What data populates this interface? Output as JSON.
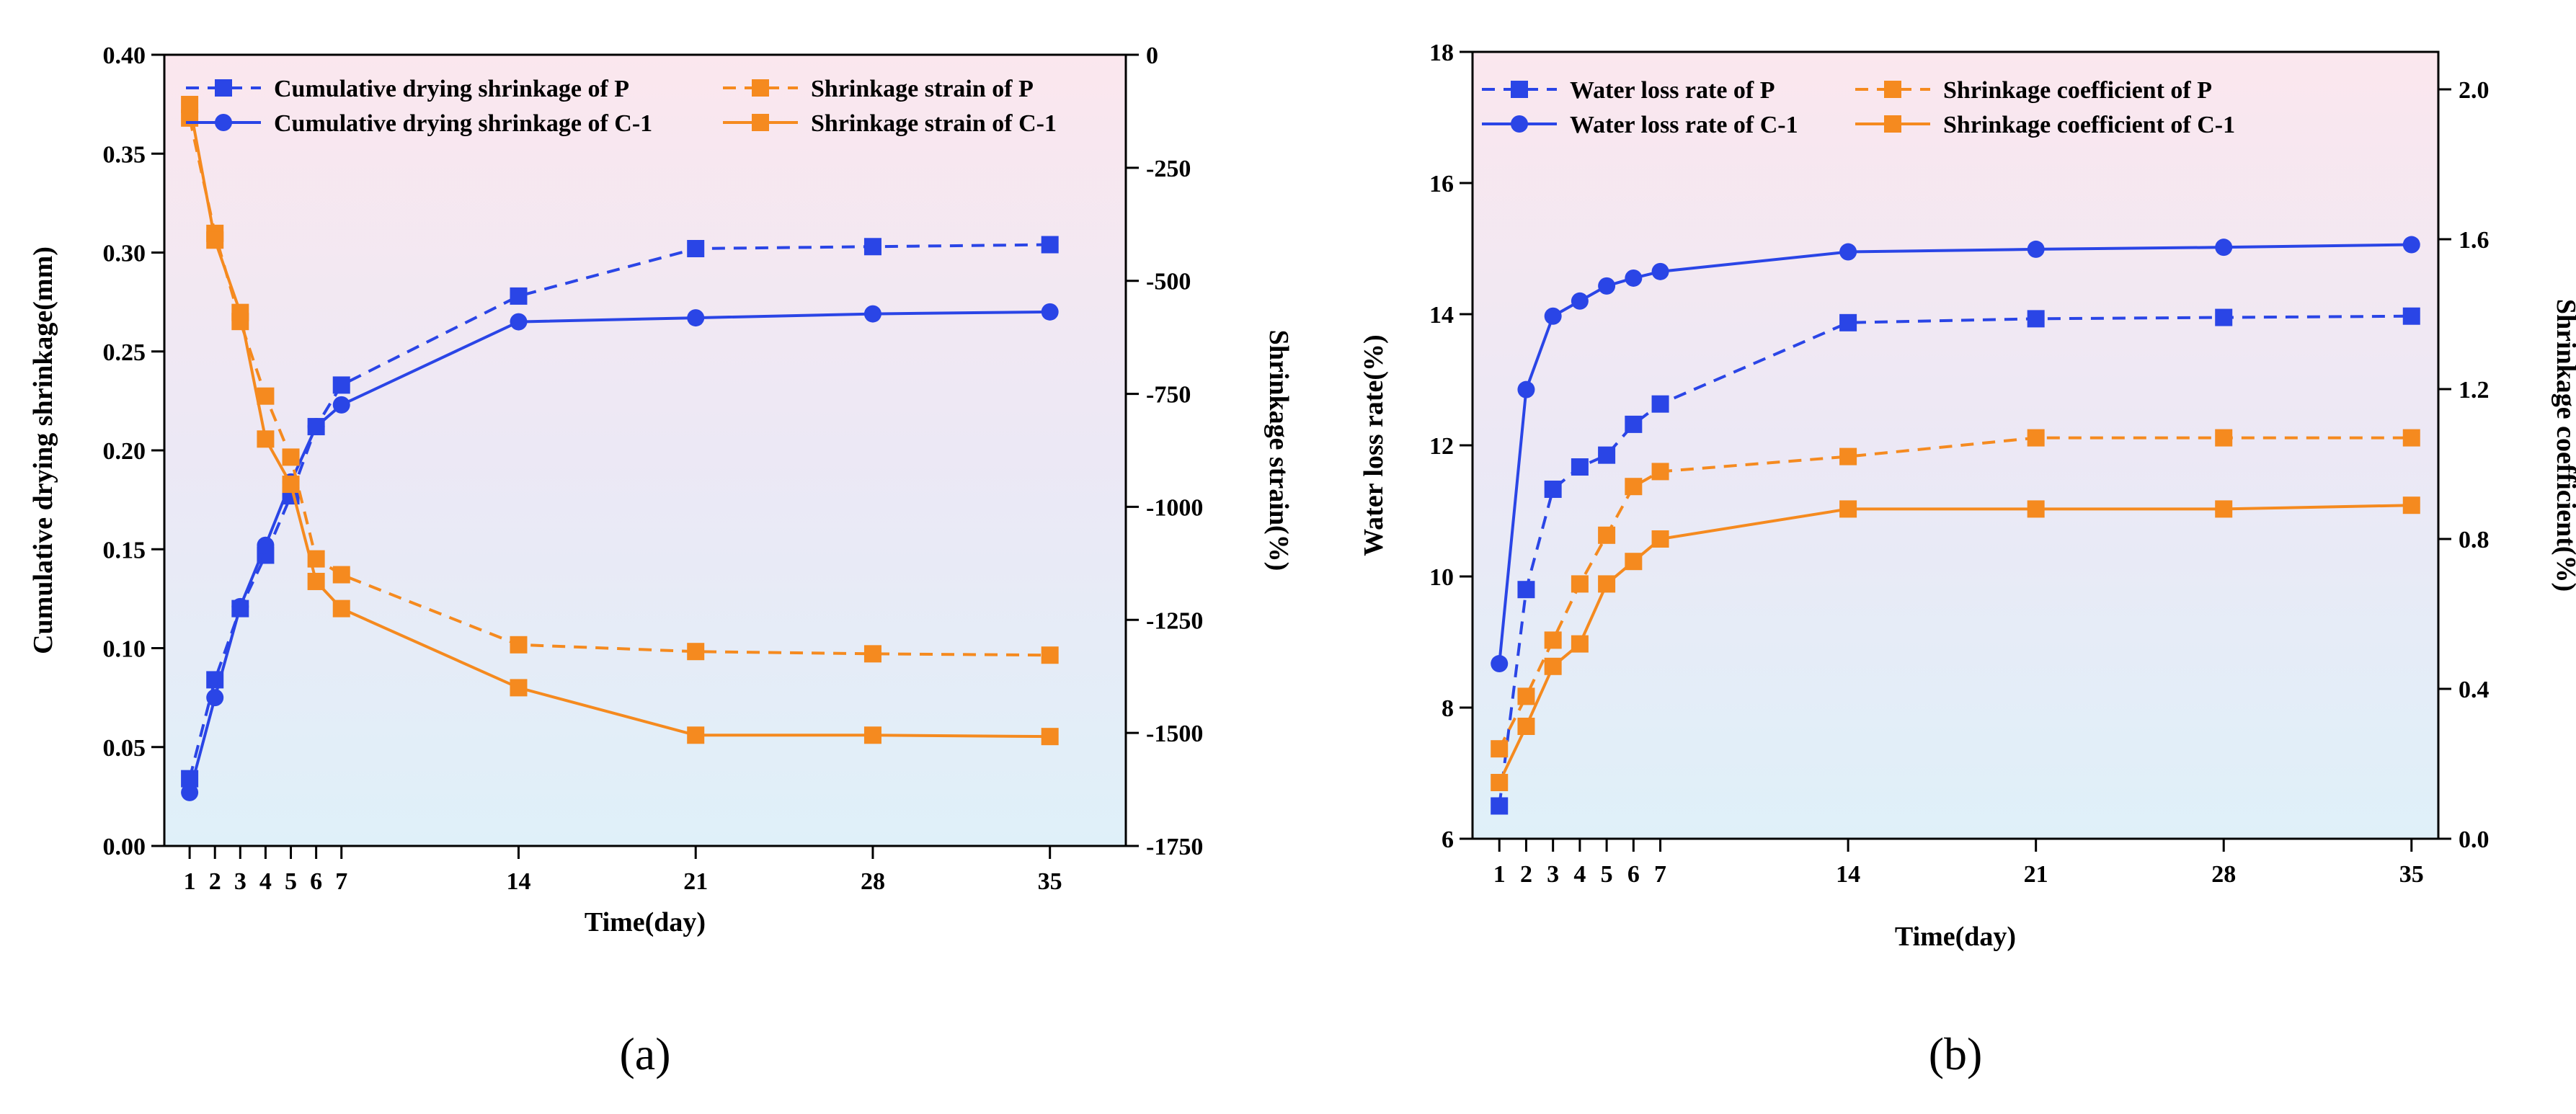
{
  "colors": {
    "blue": "#2a45e6",
    "orange": "#f58a1f"
  },
  "chart_data": [
    {
      "type": "line",
      "panel_label": "(a)",
      "x_ticks": [
        1,
        2,
        3,
        4,
        5,
        6,
        7,
        14,
        21,
        28,
        35
      ],
      "xlabel": "Time(day)",
      "xlim": [
        0,
        38
      ],
      "ylabel": "Cumulative drying shrinkage(mm)",
      "ylim": [
        0,
        0.4
      ],
      "y_ticks": [
        "0.00",
        "0.05",
        "0.10",
        "0.15",
        "0.20",
        "0.25",
        "0.30",
        "0.35",
        "0.40"
      ],
      "y2label": "Shrinkage strain(%)",
      "y2lim": [
        -1750,
        0
      ],
      "y2_ticks": [
        "0",
        "-250",
        "-500",
        "-750",
        "-1000",
        "-1250",
        "-1500",
        "-1750"
      ],
      "legend_position": "top",
      "series": [
        {
          "name": "Cumulative drying shrinkage of P",
          "axis": "left",
          "color": "blue",
          "style": "dashed",
          "marker": "square",
          "x": [
            1,
            2,
            3,
            4,
            5,
            6,
            7,
            14,
            21,
            28,
            35
          ],
          "y": [
            0.034,
            0.084,
            0.12,
            0.147,
            0.177,
            0.212,
            0.233,
            0.278,
            0.302,
            0.303,
            0.304
          ]
        },
        {
          "name": "Cumulative drying shrinkage of C-1",
          "axis": "left",
          "color": "blue",
          "style": "solid",
          "marker": "circle",
          "x": [
            1,
            2,
            3,
            4,
            5,
            6,
            7,
            14,
            21,
            28,
            35
          ],
          "y": [
            0.027,
            0.075,
            0.121,
            0.152,
            0.184,
            0.212,
            0.223,
            0.265,
            0.267,
            0.269,
            0.27
          ]
        },
        {
          "name": "Shrinkage strain of P",
          "axis": "right",
          "color": "orange",
          "style": "dashed",
          "marker": "square",
          "x": [
            1,
            2,
            3,
            4,
            5,
            6,
            7,
            14,
            21,
            28,
            35
          ],
          "y": [
            -140,
            -395,
            -590,
            -755,
            -890,
            -1115,
            -1150,
            -1305,
            -1320,
            -1325,
            -1328
          ]
        },
        {
          "name": "Shrinkage strain of C-1",
          "axis": "right",
          "color": "orange",
          "style": "solid",
          "marker": "square",
          "x": [
            1,
            2,
            3,
            4,
            5,
            6,
            7,
            14,
            21,
            28,
            35
          ],
          "y": [
            -110,
            -410,
            -570,
            -850,
            -950,
            -1165,
            -1225,
            -1400,
            -1505,
            -1505,
            -1508
          ]
        }
      ]
    },
    {
      "type": "line",
      "panel_label": "(b)",
      "x_ticks": [
        1,
        2,
        3,
        4,
        5,
        6,
        7,
        14,
        21,
        28,
        35
      ],
      "xlabel": "Time(day)",
      "xlim": [
        0,
        36
      ],
      "ylabel": "Water loss rate(%)",
      "ylim": [
        6,
        18
      ],
      "y_ticks": [
        "6",
        "8",
        "10",
        "12",
        "14",
        "16",
        "18"
      ],
      "y2label": "Shrinkage coefficient(%)",
      "y2lim": [
        0,
        2.1
      ],
      "y2_ticks": [
        "0.0",
        "0.4",
        "0.8",
        "1.2",
        "1.6",
        "2.0"
      ],
      "legend_position": "top",
      "series": [
        {
          "name": "Water loss rate of P",
          "axis": "left",
          "color": "blue",
          "style": "dashed",
          "marker": "square",
          "x": [
            1,
            2,
            3,
            4,
            5,
            6,
            7,
            14,
            21,
            28,
            35
          ],
          "y": [
            6.5,
            9.8,
            11.33,
            11.67,
            11.85,
            12.32,
            12.63,
            13.87,
            13.93,
            13.95,
            13.97
          ]
        },
        {
          "name": "Water loss rate of C-1",
          "axis": "left",
          "color": "blue",
          "style": "solid",
          "marker": "circle",
          "x": [
            1,
            2,
            3,
            4,
            5,
            6,
            7,
            14,
            21,
            28,
            35
          ],
          "y": [
            8.67,
            12.85,
            13.97,
            14.2,
            14.43,
            14.55,
            14.65,
            14.95,
            14.99,
            15.02,
            15.06
          ]
        },
        {
          "name": "Shrinkage coefficient of P",
          "axis": "right",
          "color": "orange",
          "style": "dashed",
          "marker": "square",
          "x": [
            1,
            2,
            3,
            4,
            5,
            6,
            7,
            14,
            21,
            28,
            35
          ],
          "y": [
            0.24,
            0.38,
            0.53,
            0.68,
            0.81,
            0.94,
            0.98,
            1.02,
            1.07,
            1.07,
            1.07
          ]
        },
        {
          "name": "Shrinkage coefficient of C-1",
          "axis": "right",
          "color": "orange",
          "style": "solid",
          "marker": "square",
          "x": [
            1,
            2,
            3,
            4,
            5,
            6,
            7,
            14,
            21,
            28,
            35
          ],
          "y": [
            0.15,
            0.3,
            0.46,
            0.52,
            0.68,
            0.74,
            0.8,
            0.88,
            0.88,
            0.88,
            0.89
          ]
        }
      ]
    }
  ]
}
